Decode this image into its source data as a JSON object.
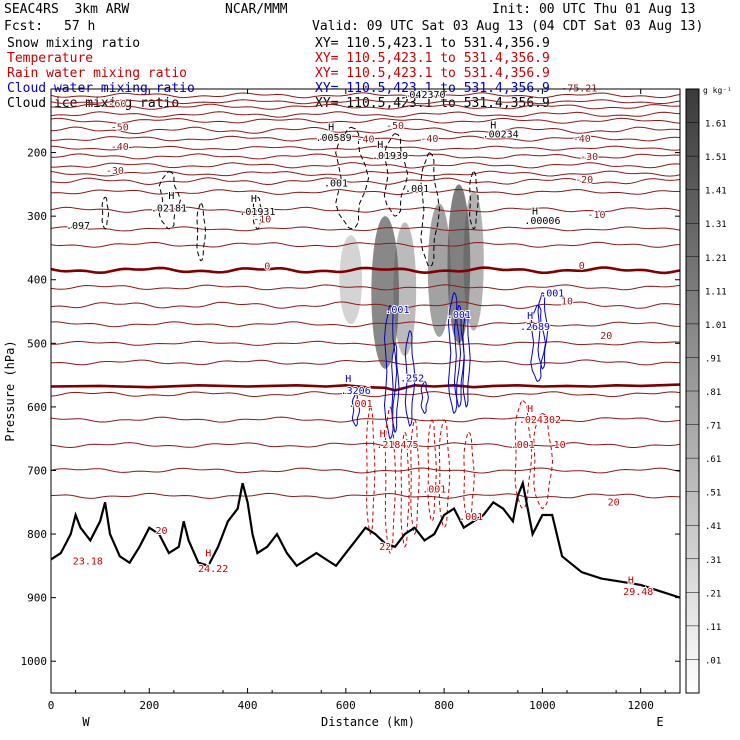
{
  "header": {
    "project": "SEAC4RS  3km ARW",
    "center": "NCAR/MMM",
    "init": "Init: 00 UTC Thu 01 Aug 13",
    "fcst_label": "Fcst:",
    "fcst_value": "57 h",
    "valid": "Valid: 09 UTC Sat 03 Aug 13 (04 CDT Sat 03 Aug 13)"
  },
  "legend": [
    {
      "name": "Snow mixing ratio",
      "color": "#000000",
      "xy": "XY= 110.5,423.1 to 531.4,356.9"
    },
    {
      "name": "Temperature",
      "color": "#cc0000",
      "xy": "XY= 110.5,423.1 to 531.4,356.9"
    },
    {
      "name": "Rain water mixing ratio",
      "color": "#cc0000",
      "xy": "XY= 110.5,423.1 to 531.4,356.9"
    },
    {
      "name": "Cloud water mixing ratio",
      "color": "#0000cc",
      "xy": "XY= 110.5,423.1 to 531.4,356.9"
    },
    {
      "name": "Cloud ice mixing ratio",
      "color": "#000000",
      "xy": "XY= 110.5,423.1 to 531.4,356.9"
    }
  ],
  "colorbar": {
    "unit": "g kg⁻¹",
    "levels": [
      "1.61",
      "1.51",
      "1.41",
      "1.31",
      "1.21",
      "1.11",
      "1.01",
      ".91",
      ".81",
      ".71",
      ".61",
      ".51",
      ".41",
      ".31",
      ".21",
      ".11",
      ".01"
    ]
  },
  "chart_data": {
    "type": "cross-section",
    "xlabel": "Distance (km)",
    "ylabel": "Pressure (hPa)",
    "xlim": [
      0,
      1280
    ],
    "ylim": [
      1050,
      100
    ],
    "x_ticks": [
      0,
      200,
      400,
      600,
      800,
      1000,
      1200
    ],
    "y_ticks": [
      200,
      300,
      400,
      500,
      600,
      700,
      800,
      900,
      1000
    ],
    "x_end_labels": {
      "left": "W",
      "right": "E"
    },
    "isotherms": [
      {
        "label": "-75.21",
        "p": 120
      },
      {
        "label": "-60",
        "p": 140
      },
      {
        "label": "-50",
        "p": 165
      },
      {
        "label": "-40",
        "p": 193
      },
      {
        "label": "-30",
        "p": 220
      },
      {
        "label": "-20",
        "p": 245
      },
      {
        "label": "-10",
        "p": 320
      },
      {
        "label": "0",
        "p": 385
      },
      {
        "label": "10",
        "p": 440
      },
      {
        "label": "20",
        "p": 500
      }
    ],
    "isotherm_labels": [
      {
        "text": "-60",
        "x": 135,
        "p": 128
      },
      {
        "text": "-50",
        "x": 140,
        "p": 165
      },
      {
        "text": "-40",
        "x": 140,
        "p": 196
      },
      {
        "text": "-30",
        "x": 130,
        "p": 234
      },
      {
        "text": "-50",
        "x": 700,
        "p": 163
      },
      {
        "text": "-40",
        "x": 640,
        "p": 184
      },
      {
        "text": "-40",
        "x": 770,
        "p": 183
      },
      {
        "text": "-30",
        "x": 690,
        "p": 212
      },
      {
        "text": "-40",
        "x": 1080,
        "p": 183
      },
      {
        "text": "-30",
        "x": 1095,
        "p": 212
      },
      {
        "text": "-20",
        "x": 1085,
        "p": 248
      },
      {
        "text": "-10",
        "x": 430,
        "p": 310
      },
      {
        "text": "-10",
        "x": 1110,
        "p": 303
      },
      {
        "text": "0",
        "x": 440,
        "p": 384
      },
      {
        "text": "0",
        "x": 1080,
        "p": 383
      },
      {
        "text": "10",
        "x": 1050,
        "p": 439
      },
      {
        "text": "20",
        "x": 1130,
        "p": 493
      },
      {
        "text": "-75.21",
        "x": 1075,
        "p": 104
      }
    ],
    "extrema_labels": [
      {
        "text": "H",
        "x": 245,
        "p": 273,
        "color": "#000000"
      },
      {
        "text": ".02181",
        "x": 240,
        "p": 293,
        "color": "#000000"
      },
      {
        "text": "H",
        "x": 413,
        "p": 278,
        "color": "#000000"
      },
      {
        "text": ".01931",
        "x": 420,
        "p": 298,
        "color": "#000000"
      },
      {
        "text": ".097",
        "x": 55,
        "p": 320,
        "color": "#000000"
      },
      {
        "text": "H",
        "x": 570,
        "p": 165,
        "color": "#000000"
      },
      {
        "text": ".00589",
        "x": 575,
        "p": 182,
        "color": "#000000"
      },
      {
        "text": "H",
        "x": 670,
        "p": 193,
        "color": "#000000"
      },
      {
        "text": ".01939",
        "x": 690,
        "p": 210,
        "color": "#000000"
      },
      {
        "text": ".001",
        "x": 580,
        "p": 253,
        "color": "#000000"
      },
      {
        "text": ".001",
        "x": 745,
        "p": 262,
        "color": "#000000"
      },
      {
        "text": "H",
        "x": 900,
        "p": 162,
        "color": "#000000"
      },
      {
        "text": ".00234",
        "x": 915,
        "p": 176,
        "color": "#000000"
      },
      {
        "text": "H",
        "x": 985,
        "p": 297,
        "color": "#000000"
      },
      {
        "text": ".00006",
        "x": 1000,
        "p": 312,
        "color": "#000000"
      },
      {
        "text": ".042370",
        "x": 760,
        "p": 114,
        "color": "#000000"
      },
      {
        "text": ".001",
        "x": 1020,
        "p": 426,
        "color": "#0000cc"
      },
      {
        "text": "H",
        "x": 975,
        "p": 462,
        "color": "#0000cc"
      },
      {
        "text": ".2689",
        "x": 985,
        "p": 479,
        "color": "#0000cc"
      },
      {
        "text": ".001",
        "x": 705,
        "p": 452,
        "color": "#0000cc"
      },
      {
        "text": ".001",
        "x": 830,
        "p": 460,
        "color": "#0000cc"
      },
      {
        "text": "H",
        "x": 605,
        "p": 561,
        "color": "#0000cc"
      },
      {
        "text": ".3206",
        "x": 620,
        "p": 580,
        "color": "#0000cc"
      },
      {
        "text": ".252",
        "x": 735,
        "p": 560,
        "color": "#0000cc"
      },
      {
        "text": "H",
        "x": 975,
        "p": 608,
        "color": "#cc0000"
      },
      {
        "text": ".024302",
        "x": 995,
        "p": 625,
        "color": "#cc0000"
      },
      {
        "text": ".001",
        "x": 630,
        "p": 600,
        "color": "#cc0000"
      },
      {
        "text": "H",
        "x": 675,
        "p": 647,
        "color": "#cc0000"
      },
      {
        "text": ".218475",
        "x": 705,
        "p": 665,
        "color": "#cc0000"
      },
      {
        "text": ".001",
        "x": 960,
        "p": 665,
        "color": "#cc0000"
      },
      {
        "text": ".001",
        "x": 780,
        "p": 735,
        "color": "#cc0000"
      },
      {
        "text": ".001",
        "x": 855,
        "p": 778,
        "color": "#cc0000"
      },
      {
        "text": "22",
        "x": 680,
        "p": 825,
        "color": "#cc0000"
      },
      {
        "text": "H",
        "x": 320,
        "p": 835,
        "color": "#cc0000"
      },
      {
        "text": "24.22",
        "x": 330,
        "p": 860,
        "color": "#cc0000"
      },
      {
        "text": "23.18",
        "x": 75,
        "p": 848,
        "color": "#cc0000"
      },
      {
        "text": "20",
        "x": 225,
        "p": 800,
        "color": "#cc0000"
      },
      {
        "text": "H",
        "x": 1180,
        "p": 878,
        "color": "#cc0000"
      },
      {
        "text": "29.48",
        "x": 1195,
        "p": 896,
        "color": "#cc0000"
      },
      {
        "text": "10",
        "x": 1035,
        "p": 665,
        "color": "#cc0000"
      },
      {
        "text": "20",
        "x": 1145,
        "p": 755,
        "color": "#cc0000"
      }
    ],
    "terrain": {
      "x": [
        0,
        20,
        40,
        50,
        60,
        80,
        100,
        110,
        120,
        140,
        160,
        180,
        200,
        220,
        240,
        260,
        270,
        280,
        300,
        320,
        340,
        360,
        380,
        390,
        400,
        410,
        420,
        440,
        460,
        480,
        500,
        520,
        540,
        560,
        580,
        600,
        620,
        640,
        660,
        680,
        700,
        720,
        740,
        760,
        780,
        800,
        820,
        840,
        860,
        880,
        900,
        920,
        940,
        950,
        960,
        970,
        980,
        1000,
        1020,
        1040,
        1080,
        1120,
        1160,
        1200,
        1240,
        1280
      ],
      "p": [
        840,
        830,
        800,
        770,
        790,
        810,
        780,
        750,
        800,
        835,
        845,
        820,
        790,
        800,
        830,
        820,
        780,
        810,
        845,
        850,
        820,
        780,
        760,
        720,
        750,
        800,
        830,
        820,
        800,
        830,
        850,
        840,
        830,
        840,
        850,
        830,
        810,
        790,
        800,
        815,
        820,
        800,
        790,
        810,
        800,
        770,
        760,
        790,
        780,
        770,
        750,
        760,
        780,
        740,
        720,
        760,
        800,
        770,
        770,
        835,
        860,
        870,
        875,
        880,
        890,
        900
      ]
    },
    "zero_isotherm": {
      "x": [
        0,
        100,
        200,
        300,
        400,
        500,
        560,
        600,
        640,
        680,
        700,
        740,
        780,
        820,
        860,
        900,
        950,
        1000,
        1050,
        1100,
        1150,
        1200,
        1280
      ],
      "p": [
        568,
        567,
        569,
        566,
        568,
        566,
        568,
        566,
        569,
        570,
        574,
        566,
        568,
        566,
        569,
        567,
        566,
        568,
        567,
        568,
        566,
        567,
        565
      ]
    },
    "ice_shading": [
      {
        "x": 610,
        "w": 30,
        "p_top": 330,
        "p_bot": 470,
        "alpha": 0.25
      },
      {
        "x": 680,
        "w": 40,
        "p_top": 300,
        "p_bot": 540,
        "alpha": 0.7
      },
      {
        "x": 720,
        "w": 30,
        "p_top": 310,
        "p_bot": 520,
        "alpha": 0.4
      },
      {
        "x": 790,
        "w": 30,
        "p_top": 280,
        "p_bot": 490,
        "alpha": 0.55
      },
      {
        "x": 830,
        "w": 30,
        "p_top": 250,
        "p_bot": 500,
        "alpha": 0.75
      },
      {
        "x": 860,
        "w": 25,
        "p_top": 260,
        "p_bot": 480,
        "alpha": 0.45
      }
    ]
  }
}
